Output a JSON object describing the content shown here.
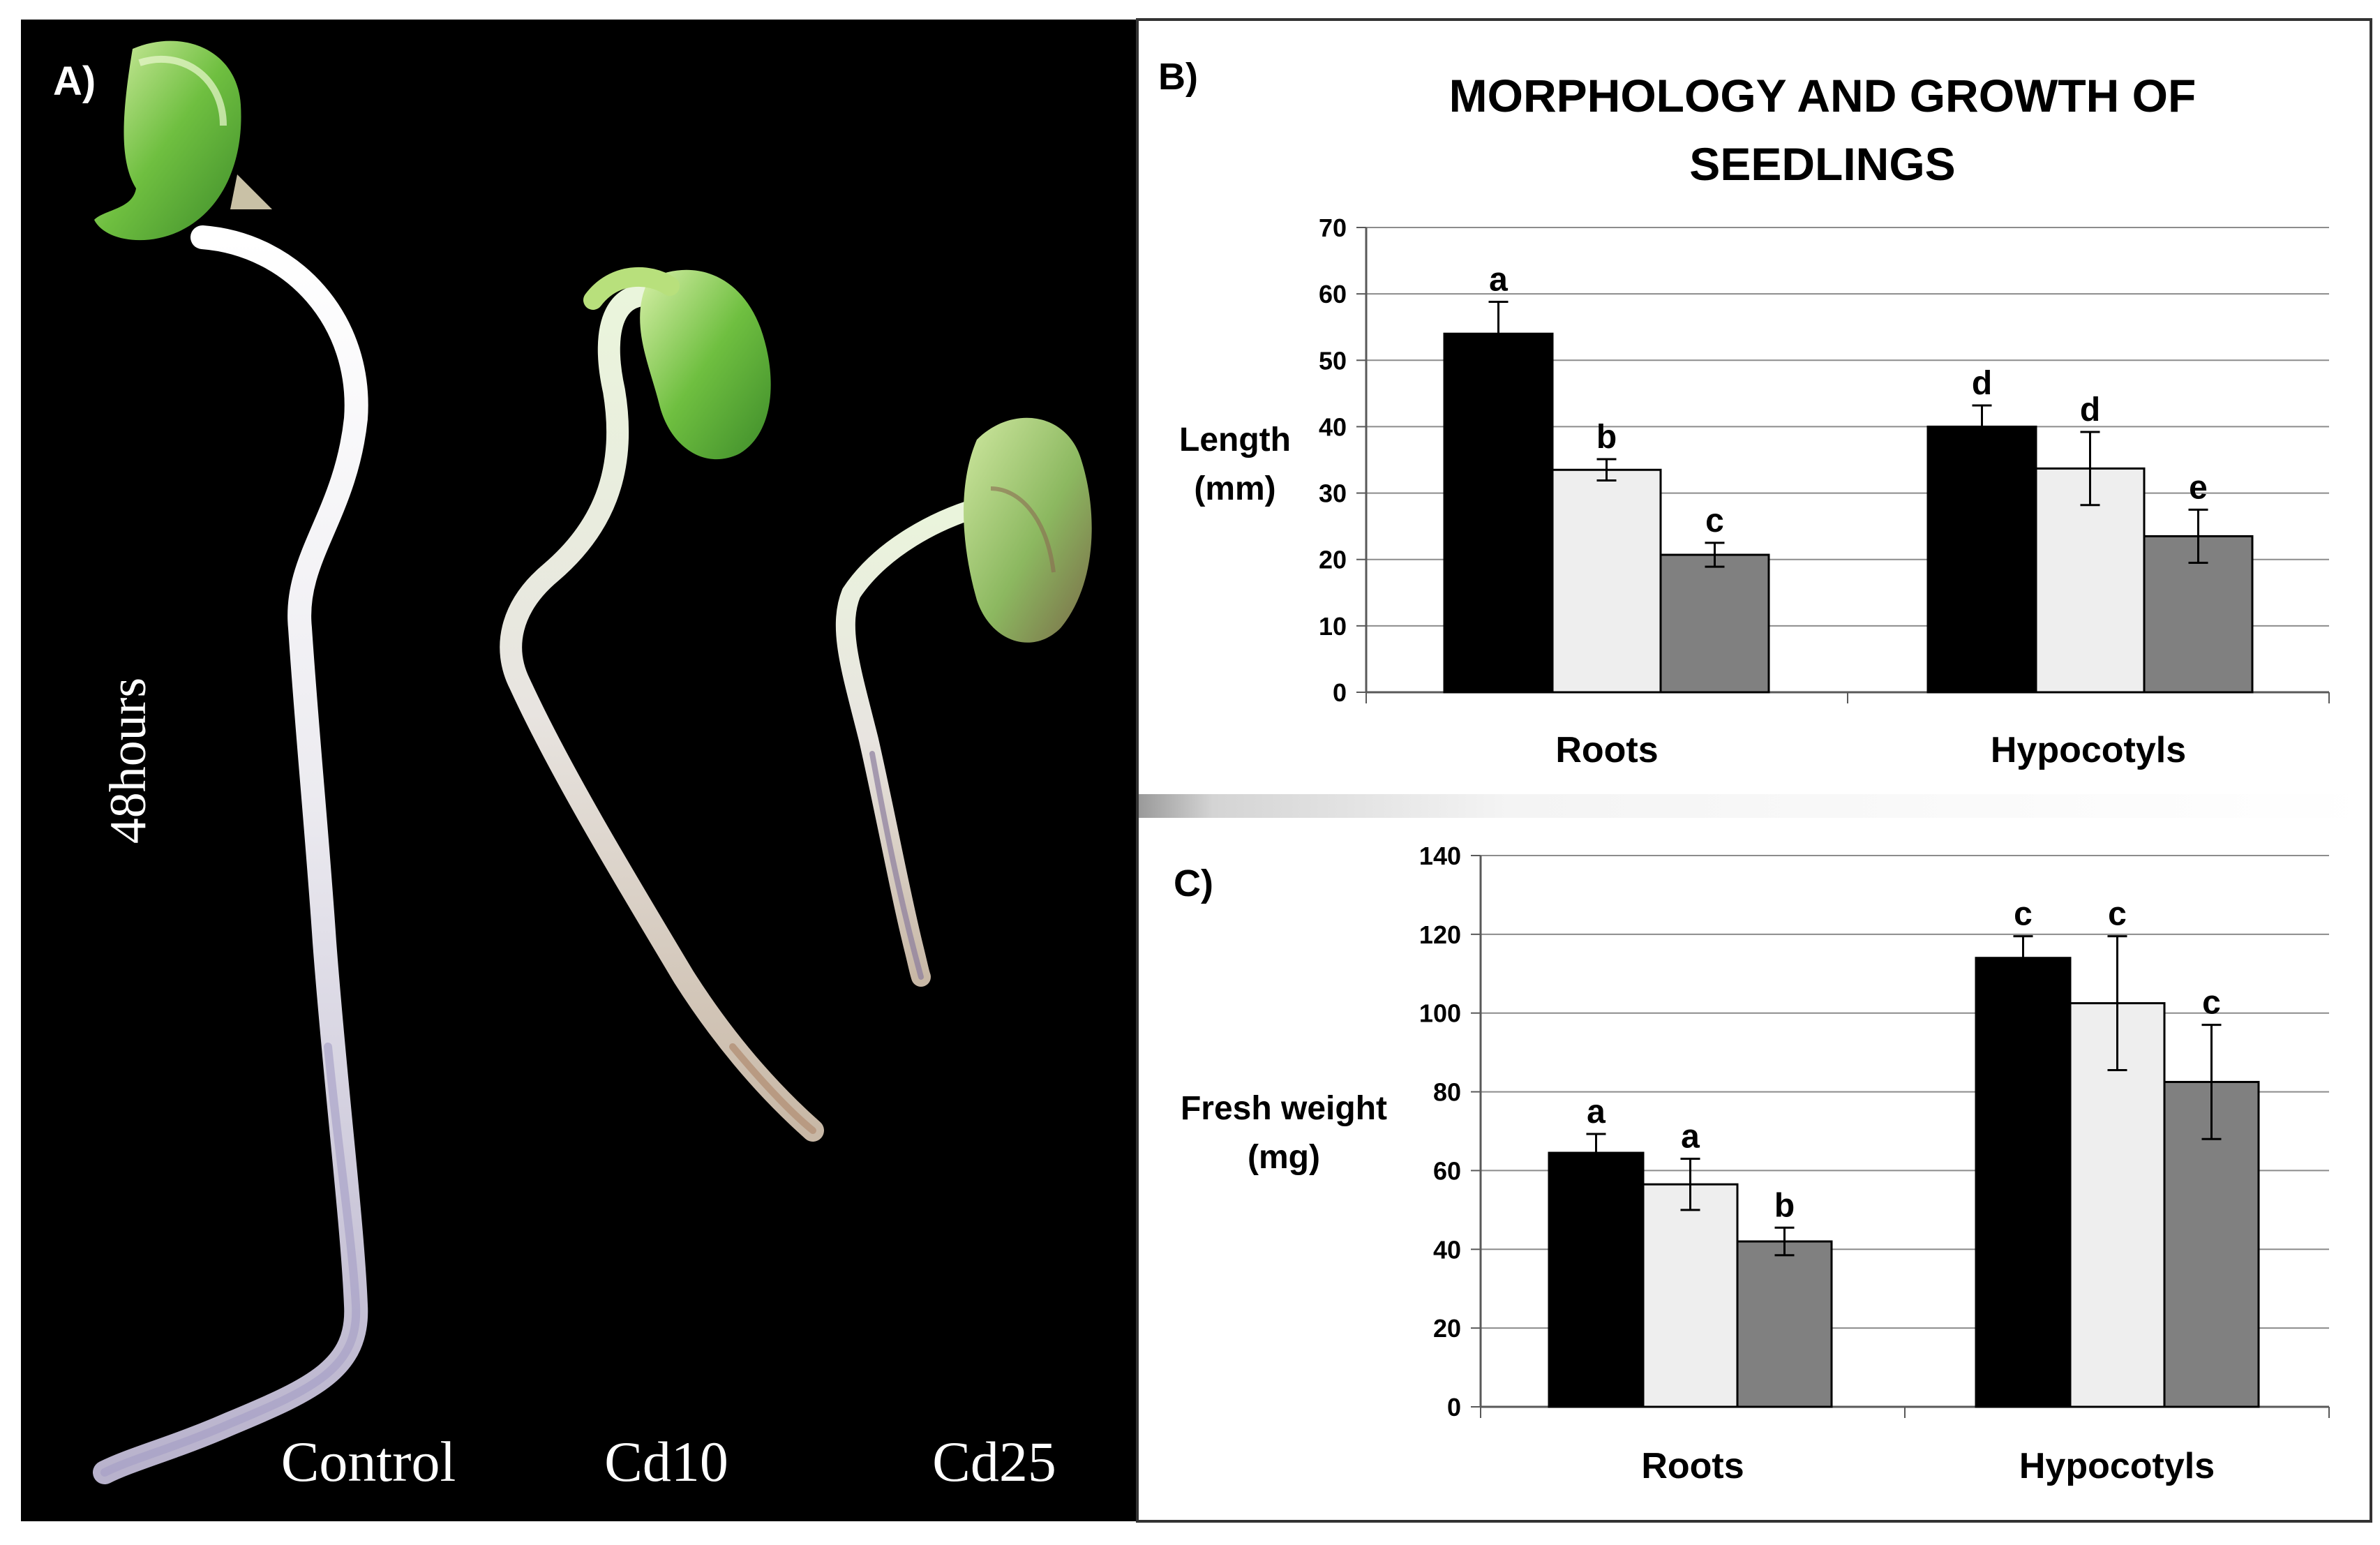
{
  "panel_a": {
    "label": "A)",
    "time_label": "48hours",
    "seedlings": [
      {
        "name": "Control"
      },
      {
        "name": "Cd10"
      },
      {
        "name": "Cd25"
      }
    ]
  },
  "colors": {
    "control": "#000000",
    "cd10": "#eeeeee",
    "cd25": "#808080",
    "gridline": "#8c8c8c",
    "photo_bg": "#000000"
  },
  "chart_data": [
    {
      "type": "bar",
      "panel_label": "B)",
      "title": "MORPHOLOGY AND GROWTH OF",
      "title_line2": "SEEDLINGS",
      "ylabel": "Length",
      "ylabel_unit": "(mm)",
      "xlabel": "",
      "categories": [
        "Roots",
        "Hypocotyls"
      ],
      "ylim": [
        0,
        70
      ],
      "yticks": [
        0,
        10,
        20,
        30,
        40,
        50,
        60,
        70
      ],
      "grid": true,
      "series": [
        {
          "name": "Control",
          "values": [
            54,
            40
          ],
          "errors": [
            4.8,
            3.2
          ],
          "letters": [
            "a",
            "d"
          ]
        },
        {
          "name": "Cd10",
          "values": [
            33.5,
            33.7
          ],
          "errors": [
            1.6,
            5.5
          ],
          "letters": [
            "b",
            "d"
          ]
        },
        {
          "name": "Cd25",
          "values": [
            20.7,
            23.5
          ],
          "errors": [
            1.8,
            4.0
          ],
          "letters": [
            "c",
            "e"
          ]
        }
      ]
    },
    {
      "type": "bar",
      "panel_label": "C)",
      "title": "",
      "ylabel": "Fresh weight",
      "ylabel_unit": "(mg)",
      "xlabel": "",
      "categories": [
        "Roots",
        "Hypocotyls"
      ],
      "ylim": [
        0,
        140
      ],
      "yticks": [
        0,
        20,
        40,
        60,
        80,
        100,
        120,
        140
      ],
      "grid": true,
      "series": [
        {
          "name": "Control",
          "values": [
            64.5,
            114
          ],
          "errors": [
            4.8,
            5.5
          ],
          "letters": [
            "a",
            "c"
          ]
        },
        {
          "name": "Cd10",
          "values": [
            56.5,
            102.5
          ],
          "errors": [
            6.5,
            17
          ],
          "letters": [
            "a",
            "c"
          ]
        },
        {
          "name": "Cd25",
          "values": [
            42,
            82.5
          ],
          "errors": [
            3.5,
            14.5
          ],
          "letters": [
            "b",
            "c"
          ]
        }
      ]
    }
  ]
}
